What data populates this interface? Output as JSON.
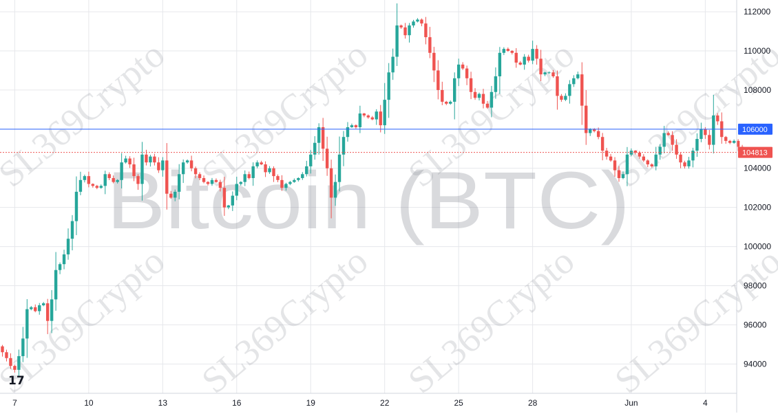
{
  "chart_data": {
    "type": "candlestick",
    "watermark_text": "Bitcoin (BTC)",
    "brand_watermark": "SL369Crypto",
    "logo_text": "17",
    "y_ticks": [
      94000,
      96000,
      98000,
      100000,
      102000,
      104000,
      106000,
      108000,
      110000,
      112000
    ],
    "ylim": [
      92500,
      112600
    ],
    "x_ticks": [
      {
        "label": "7",
        "index": 3
      },
      {
        "label": "10",
        "index": 21
      },
      {
        "label": "13",
        "index": 39
      },
      {
        "label": "16",
        "index": 57
      },
      {
        "label": "19",
        "index": 75
      },
      {
        "label": "22",
        "index": 93
      },
      {
        "label": "25",
        "index": 111
      },
      {
        "label": "28",
        "index": 129
      },
      {
        "label": "Jun",
        "index": 153
      },
      {
        "label": "4",
        "index": 171
      }
    ],
    "horizontal_line": {
      "value": 106000,
      "label": "106000",
      "color": "#2962ff"
    },
    "last_price": {
      "value": 104813,
      "label": "104813",
      "color": "#ef5350"
    },
    "colors": {
      "up": "#26a69a",
      "down": "#ef5350",
      "grid": "#e6e7eb",
      "axis_text": "#131722"
    },
    "closes": [
      94600,
      94300,
      93900,
      93700,
      94400,
      95300,
      96800,
      96900,
      96700,
      97000,
      97100,
      96200,
      97300,
      98800,
      99100,
      99600,
      100400,
      101300,
      102800,
      103400,
      103600,
      103200,
      103100,
      103000,
      103100,
      103700,
      103500,
      103300,
      103400,
      104300,
      104500,
      104200,
      103600,
      103200,
      104700,
      104300,
      104600,
      104300,
      103900,
      104400,
      102700,
      102500,
      102800,
      103700,
      104300,
      104400,
      104000,
      103700,
      103500,
      103300,
      103200,
      103400,
      103300,
      103000,
      102000,
      102100,
      102600,
      103200,
      103300,
      103700,
      103500,
      104100,
      104300,
      104200,
      103800,
      104000,
      103600,
      103400,
      103000,
      103200,
      103300,
      103400,
      103500,
      103700,
      104100,
      104700,
      105300,
      106100,
      105000,
      104000,
      102500,
      103300,
      104700,
      105600,
      106100,
      106200,
      106100,
      106800,
      106700,
      106600,
      106500,
      106900,
      106200,
      107500,
      108900,
      109700,
      111300,
      111200,
      110800,
      111300,
      111500,
      111600,
      111400,
      110700,
      109900,
      109000,
      108000,
      107400,
      107300,
      107400,
      108600,
      109300,
      109100,
      108600,
      107900,
      107600,
      107800,
      107300,
      107100,
      107900,
      108700,
      109900,
      110100,
      110000,
      109900,
      109400,
      109300,
      109700,
      109500,
      110100,
      109600,
      108800,
      108900,
      108900,
      108700,
      107700,
      107500,
      107700,
      108300,
      108600,
      108800,
      107200,
      105800,
      106000,
      105900,
      105600,
      104900,
      104600,
      104400,
      103900,
      103500,
      103700,
      104700,
      104900,
      104800,
      104600,
      104400,
      104200,
      104100,
      104700,
      105100,
      105800,
      105700,
      105200,
      104700,
      104300,
      104100,
      104400,
      104900,
      105500,
      106000,
      105700,
      105200,
      106700,
      106400,
      105600,
      105400,
      105300,
      105400,
      105100,
      104900,
      104813
    ]
  }
}
